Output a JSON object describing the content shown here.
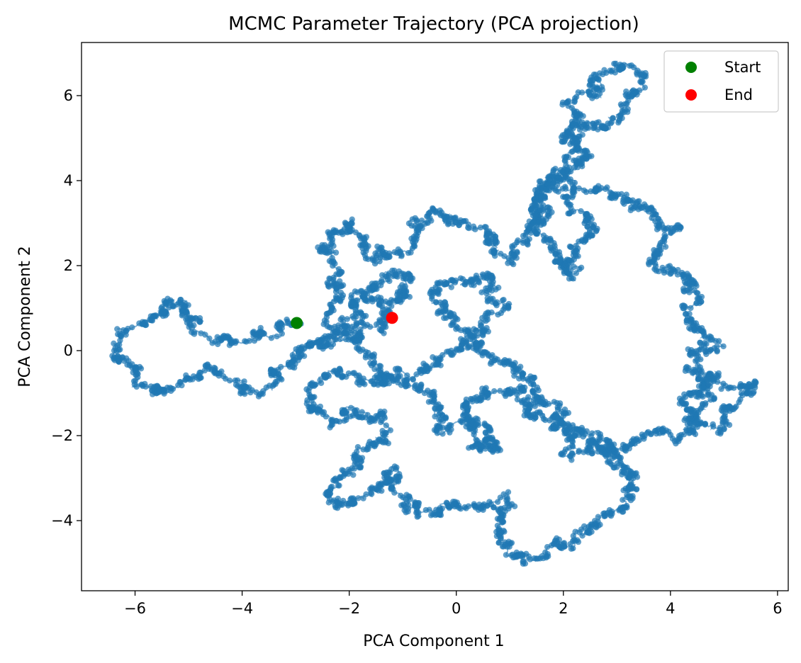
{
  "chart_data": {
    "type": "scatter",
    "title": "MCMC Parameter Trajectory (PCA projection)",
    "xlabel": "PCA Component 1",
    "ylabel": "PCA Component 2",
    "xlim": [
      -7.0,
      6.2
    ],
    "ylim": [
      -5.65,
      7.25
    ],
    "xticks": [
      -6,
      -4,
      -2,
      0,
      2,
      4,
      6
    ],
    "yticks": [
      -4,
      -2,
      0,
      2,
      4,
      6
    ],
    "xtick_labels": [
      "−6",
      "−4",
      "−2",
      "0",
      "2",
      "4",
      "6"
    ],
    "ytick_labels": [
      "−4",
      "−2",
      "0",
      "2",
      "4",
      "6"
    ],
    "grid": false,
    "legend_position": "top-right",
    "trajectory": {
      "color": "#1f77b4",
      "waypoints": [
        [
          -3.0,
          0.65
        ],
        [
          -3.8,
          0.3
        ],
        [
          -4.6,
          0.3
        ],
        [
          -5.2,
          1.2
        ],
        [
          -6.0,
          0.5
        ],
        [
          -6.4,
          -0.1
        ],
        [
          -5.5,
          -1.0
        ],
        [
          -4.5,
          -0.5
        ],
        [
          -3.8,
          -0.9
        ],
        [
          -3.0,
          -0.3
        ],
        [
          -2.3,
          0.6
        ],
        [
          -2.4,
          2.9
        ],
        [
          -2.0,
          3.0
        ],
        [
          -1.6,
          2.2
        ],
        [
          -1.0,
          2.4
        ],
        [
          -0.5,
          3.3
        ],
        [
          0.4,
          3.0
        ],
        [
          0.9,
          2.2
        ],
        [
          1.4,
          2.8
        ],
        [
          1.5,
          3.7
        ],
        [
          1.8,
          4.0
        ],
        [
          2.6,
          3.0
        ],
        [
          2.0,
          2.0
        ],
        [
          2.2,
          1.8
        ],
        [
          1.6,
          2.9
        ],
        [
          1.8,
          4.1
        ],
        [
          2.2,
          4.6
        ],
        [
          2.0,
          5.0
        ],
        [
          3.0,
          5.6
        ],
        [
          3.5,
          6.5
        ],
        [
          2.8,
          6.7
        ],
        [
          2.2,
          5.8
        ],
        [
          2.4,
          4.6
        ],
        [
          1.9,
          4.0
        ],
        [
          2.8,
          3.7
        ],
        [
          3.6,
          3.3
        ],
        [
          4.1,
          2.8
        ],
        [
          3.7,
          2.1
        ],
        [
          4.5,
          1.6
        ],
        [
          4.4,
          0.8
        ],
        [
          4.9,
          0.2
        ],
        [
          4.3,
          0.0
        ],
        [
          4.8,
          -0.6
        ],
        [
          5.5,
          -0.9
        ],
        [
          4.9,
          -1.8
        ],
        [
          4.3,
          -1.3
        ],
        [
          4.8,
          -0.6
        ],
        [
          4.4,
          -2.0
        ],
        [
          3.8,
          -1.9
        ],
        [
          3.2,
          -2.2
        ],
        [
          2.8,
          -2.5
        ],
        [
          3.4,
          -3.0
        ],
        [
          3.0,
          -3.8
        ],
        [
          2.0,
          -4.6
        ],
        [
          1.3,
          -4.9
        ],
        [
          0.8,
          -4.4
        ],
        [
          1.0,
          -3.6
        ],
        [
          0.0,
          -3.6
        ],
        [
          -0.7,
          -3.8
        ],
        [
          -1.1,
          -2.8
        ],
        [
          -1.6,
          -3.3
        ],
        [
          -2.3,
          -3.7
        ],
        [
          -2.1,
          -3.1
        ],
        [
          -1.5,
          -2.1
        ],
        [
          -1.3,
          -1.5
        ],
        [
          -2.2,
          -1.6
        ],
        [
          -2.8,
          -1.3
        ],
        [
          -2.3,
          -0.5
        ],
        [
          -1.3,
          -0.7
        ],
        [
          -0.4,
          -1.1
        ],
        [
          -0.3,
          -1.8
        ],
        [
          0.5,
          -1.6
        ],
        [
          0.8,
          -2.4
        ],
        [
          0.3,
          -2.1
        ],
        [
          0.2,
          -1.0
        ],
        [
          1.2,
          -1.0
        ],
        [
          1.9,
          -1.1
        ],
        [
          2.0,
          -2.4
        ],
        [
          2.8,
          -2.2
        ],
        [
          3.0,
          -2.4
        ],
        [
          2.6,
          -2.0
        ],
        [
          1.5,
          -1.6
        ],
        [
          1.3,
          -0.5
        ],
        [
          0.8,
          -0.2
        ],
        [
          0.1,
          0.5
        ],
        [
          -0.5,
          1.4
        ],
        [
          0.6,
          1.8
        ],
        [
          0.8,
          1.0
        ],
        [
          0.2,
          0.2
        ],
        [
          -0.6,
          -0.4
        ],
        [
          -1.3,
          -0.6
        ],
        [
          -1.8,
          0.3
        ],
        [
          -2.4,
          0.2
        ],
        [
          -1.8,
          1.1
        ],
        [
          -1.2,
          0.9
        ],
        [
          -0.9,
          1.9
        ],
        [
          -1.6,
          1.6
        ],
        [
          -2.0,
          0.5
        ],
        [
          -1.2,
          0.75
        ]
      ]
    },
    "series": [
      {
        "name": "Start",
        "color": "#008000",
        "x": [
          -2.98
        ],
        "y": [
          0.65
        ]
      },
      {
        "name": "End",
        "color": "#ff0000",
        "x": [
          -1.2
        ],
        "y": [
          0.77
        ]
      }
    ]
  }
}
